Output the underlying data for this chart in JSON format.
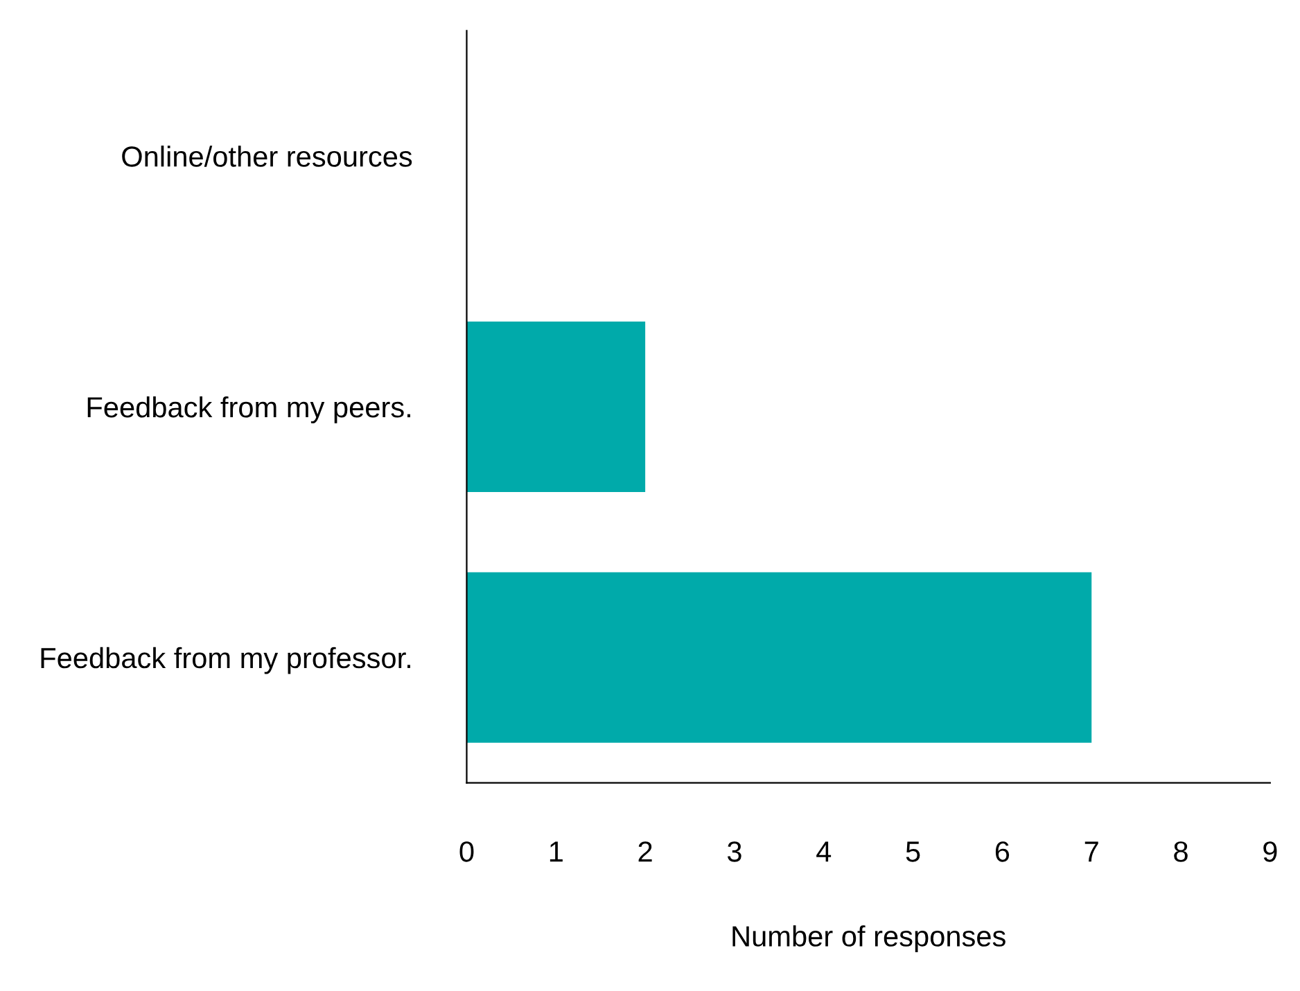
{
  "chart_data": {
    "type": "bar",
    "orientation": "horizontal",
    "xlabel": "Number of responses",
    "categories": [
      "Online/other resources",
      "Feedback from my peers.",
      "Feedback from my professor."
    ],
    "values": [
      0,
      2,
      7
    ],
    "color": "#00aaaa",
    "xlim": [
      0,
      9
    ],
    "xticks": [
      0,
      1,
      2,
      3,
      4,
      5,
      6,
      7,
      8,
      9
    ],
    "grid": false,
    "legend": false
  }
}
